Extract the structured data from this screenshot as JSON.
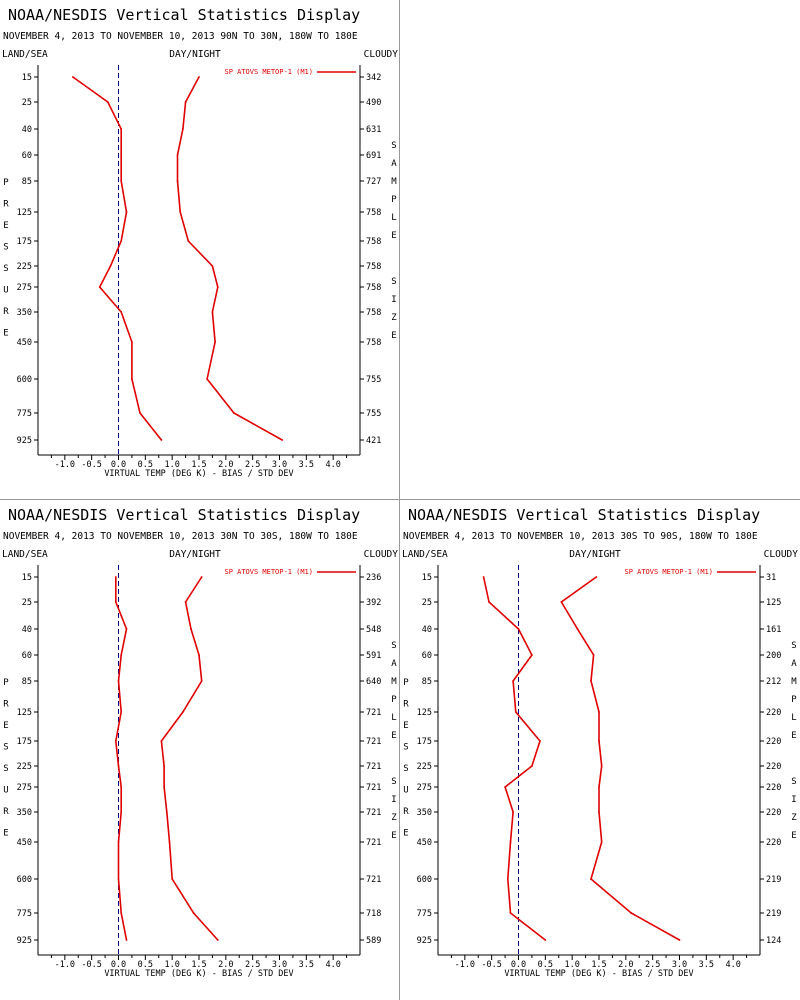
{
  "panels": [
    {
      "title": "NOAA/NESDIS Vertical Statistics Display",
      "subtitle": "NOVEMBER 4, 2013 TO NOVEMBER 10, 2013 90N TO 30N, 180W TO 180E",
      "header_left": "LAND/SEA",
      "header_center": "DAY/NIGHT",
      "header_right": "CLOUDY",
      "legend": "SP ATOVS METOP-1 (M1)",
      "xlabel": "VIRTUAL TEMP (DEG K) - BIAS / STD DEV",
      "ylabel_left": "PRESSURE",
      "ylabel_right": "SAMPLE SIZE",
      "empty": false
    },
    {
      "empty": true
    },
    {
      "title": "NOAA/NESDIS Vertical Statistics Display",
      "subtitle": "NOVEMBER 4, 2013 TO NOVEMBER 10, 2013 30N TO 30S, 180W TO 180E",
      "header_left": "LAND/SEA",
      "header_center": "DAY/NIGHT",
      "header_right": "CLOUDY",
      "legend": "SP ATOVS METOP-1 (M1)",
      "xlabel": "VIRTUAL TEMP (DEG K) - BIAS / STD DEV",
      "ylabel_left": "PRESSURE",
      "ylabel_right": "SAMPLE SIZE",
      "empty": false
    },
    {
      "title": "NOAA/NESDIS Vertical Statistics Display",
      "subtitle": "NOVEMBER 4, 2013 TO NOVEMBER 10, 2013 30S TO 90S, 180W TO 180E",
      "header_left": "LAND/SEA",
      "header_center": "DAY/NIGHT",
      "header_right": "CLOUDY",
      "legend": "SP ATOVS METOP-1 (M1)",
      "xlabel": "VIRTUAL TEMP (DEG K) - BIAS / STD DEV",
      "ylabel_left": "PRESSURE",
      "ylabel_right": "SAMPLE SIZE",
      "empty": false
    }
  ],
  "colors": {
    "series": "#e00000",
    "axis": "#000000",
    "zero_line": "#000080"
  },
  "chart_data": [
    {
      "type": "line",
      "pressure_levels": [
        15,
        25,
        40,
        60,
        85,
        125,
        175,
        225,
        275,
        350,
        450,
        600,
        775,
        925
      ],
      "y_tick_labels": [
        "15",
        "25",
        "40",
        "60",
        "85",
        "125",
        "175",
        "225",
        "275",
        "350",
        "450",
        "600",
        "775",
        "925"
      ],
      "x_ticks": [
        "-1.0",
        "-0.5",
        "0.0",
        "0.5",
        "1.0",
        "1.5",
        "2.0",
        "2.5",
        "3.0",
        "3.5",
        "4.0"
      ],
      "xlim": [
        -1.5,
        4.5
      ],
      "sample_size": [
        "342",
        "490",
        "631",
        "691",
        "727",
        "758",
        "758",
        "758",
        "758",
        "758",
        "758",
        "755",
        "755",
        "421"
      ],
      "series": [
        {
          "role": "bias",
          "values": [
            -0.85,
            -0.2,
            0.05,
            0.05,
            0.05,
            0.15,
            0.05,
            -0.15,
            -0.35,
            0.05,
            0.25,
            0.25,
            0.4,
            0.8
          ]
        },
        {
          "role": "std_dev",
          "values": [
            1.5,
            1.25,
            1.2,
            1.1,
            1.1,
            1.15,
            1.3,
            1.75,
            1.85,
            1.75,
            1.8,
            1.65,
            2.15,
            3.05
          ]
        }
      ],
      "zero_line": 0.0
    },
    {
      "type": "line",
      "pressure_levels": [
        15,
        25,
        40,
        60,
        85,
        125,
        175,
        225,
        275,
        350,
        450,
        600,
        775,
        925
      ],
      "y_tick_labels": [
        "15",
        "25",
        "40",
        "60",
        "85",
        "125",
        "175",
        "225",
        "275",
        "350",
        "450",
        "600",
        "775",
        "925"
      ],
      "x_ticks": [
        "-1.0",
        "-0.5",
        "0.0",
        "0.5",
        "1.0",
        "1.5",
        "2.0",
        "2.5",
        "3.0",
        "3.5",
        "4.0"
      ],
      "xlim": [
        -1.5,
        4.5
      ],
      "sample_size": [
        "236",
        "392",
        "548",
        "591",
        "640",
        "721",
        "721",
        "721",
        "721",
        "721",
        "721",
        "721",
        "718",
        "589"
      ],
      "series": [
        {
          "role": "bias",
          "values": [
            -0.05,
            -0.05,
            0.15,
            0.05,
            0.0,
            0.05,
            -0.05,
            0.0,
            0.05,
            0.05,
            0.0,
            0.0,
            0.05,
            0.15
          ]
        },
        {
          "role": "std_dev",
          "values": [
            1.55,
            1.25,
            1.35,
            1.5,
            1.55,
            1.2,
            0.8,
            0.85,
            0.85,
            0.9,
            0.95,
            1.0,
            1.4,
            1.85
          ]
        }
      ],
      "zero_line": 0.0
    },
    {
      "type": "line",
      "pressure_levels": [
        15,
        25,
        40,
        60,
        85,
        125,
        175,
        225,
        275,
        350,
        450,
        600,
        775,
        925
      ],
      "y_tick_labels": [
        "15",
        "25",
        "40",
        "60",
        "85",
        "125",
        "175",
        "225",
        "275",
        "350",
        "450",
        "600",
        "775",
        "925"
      ],
      "x_ticks": [
        "-1.0",
        "-0.5",
        "0.0",
        "0.5",
        "1.0",
        "1.5",
        "2.0",
        "2.5",
        "3.0",
        "3.5",
        "4.0"
      ],
      "xlim": [
        -1.5,
        4.5
      ],
      "sample_size": [
        "31",
        "125",
        "161",
        "200",
        "212",
        "220",
        "220",
        "220",
        "220",
        "220",
        "220",
        "219",
        "219",
        "124"
      ],
      "series": [
        {
          "role": "bias",
          "values": [
            -0.65,
            -0.55,
            0.0,
            0.25,
            -0.1,
            -0.05,
            0.4,
            0.25,
            -0.25,
            -0.1,
            -0.15,
            -0.2,
            -0.15,
            0.5
          ]
        },
        {
          "role": "std_dev",
          "values": [
            1.45,
            0.8,
            1.1,
            1.4,
            1.35,
            1.5,
            1.5,
            1.55,
            1.5,
            1.5,
            1.55,
            1.35,
            2.1,
            3.0
          ]
        }
      ],
      "zero_line": 0.0
    }
  ]
}
